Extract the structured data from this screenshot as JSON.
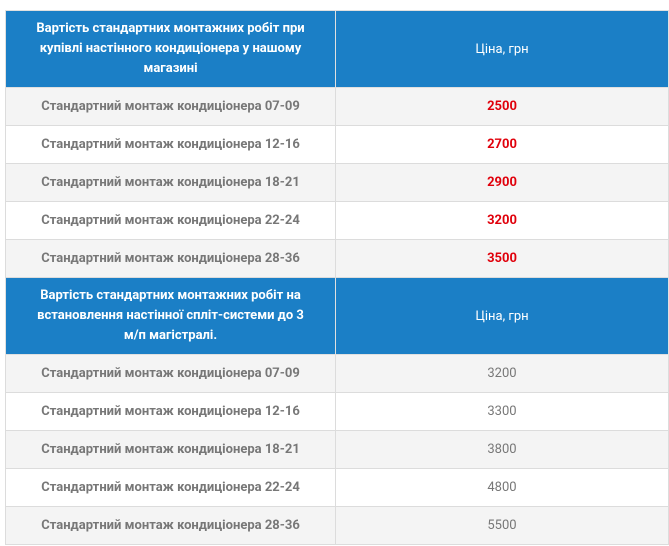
{
  "sections": [
    {
      "header": {
        "title": "Вартість стандартних монтажних робіт при купівлі настінного кондиціонера у нашому магазині",
        "price": "Ціна, грн"
      },
      "rows": [
        [
          "Стандартний монтаж кондиціонера 07-09",
          2500
        ],
        [
          "Стандартний монтаж кондиціонера 12-16",
          2700
        ],
        [
          "Стандартний монтаж кондиціонера 18-21",
          2900
        ],
        [
          "Стандартний монтаж кондиціонера 22-24",
          3200
        ],
        [
          "Стандартний монтаж кондиціонера 28-36",
          3500
        ]
      ]
    },
    {
      "header": {
        "title": "Вартість стандартних монтажних робіт на встановлення настінної спліт-системи до 3 м/п магістралі.",
        "price": "Ціна, грн"
      },
      "rows": [
        [
          "Стандартний монтаж кондиціонера 07-09",
          3200
        ],
        [
          "Стандартний монтаж кондиціонера 12-16",
          3300
        ],
        [
          "Стандартний монтаж кондиціонера 18-21",
          3800
        ],
        [
          "Стандартний монтаж кондиціонера 22-24",
          4800
        ],
        [
          "Стандартний монтаж кондиціонера 28-36",
          5500
        ]
      ]
    }
  ]
}
